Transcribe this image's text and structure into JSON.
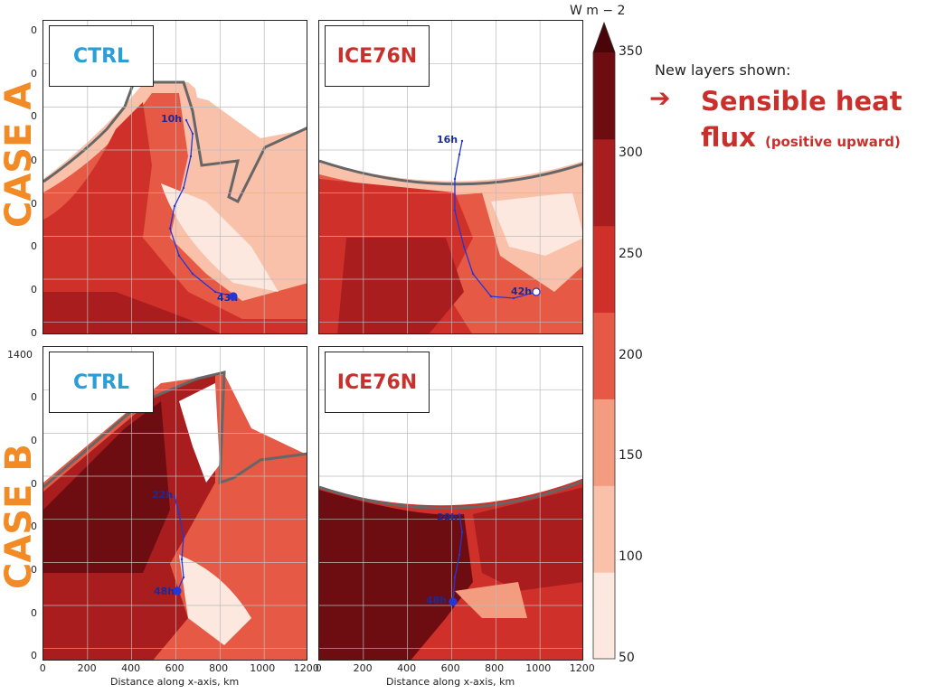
{
  "cases": [
    {
      "label": "CASE A"
    },
    {
      "label": "CASE B"
    }
  ],
  "panels": [
    {
      "label": "CTRL",
      "label_color": "#2a9fd6",
      "track_start": "10h",
      "track_end": "43h"
    },
    {
      "label": "ICE76N",
      "label_color": "#c9302c",
      "track_start": "16h",
      "track_end": "42h"
    },
    {
      "label": "CTRL",
      "label_color": "#2a9fd6",
      "track_start": "22h",
      "track_end": "48h"
    },
    {
      "label": "ICE76N",
      "label_color": "#c9302c",
      "track_start": "20h",
      "track_end": "48h"
    }
  ],
  "axes": {
    "xlabel": "Distance along x-axis, km",
    "xticks": [
      "0",
      "200",
      "400",
      "600",
      "800",
      "1000",
      "1200"
    ],
    "ytick_top_b": "1400",
    "ytick_partial": "0"
  },
  "colorbar": {
    "units": "W m − 2",
    "ticks": [
      "350",
      "300",
      "250",
      "200",
      "150",
      "100",
      "50"
    ],
    "colors": [
      "#fce8df",
      "#f9c1a9",
      "#f39c7f",
      "#e65a45",
      "#d0302a",
      "#a91d1f",
      "#6d0d12"
    ],
    "arrow_color": "#4a0509"
  },
  "notes": {
    "header": "New layers shown:",
    "arrow": "➔",
    "title_line1": "Sensible heat",
    "title_line2": "flux",
    "title_sub": "(positive upward)"
  }
}
